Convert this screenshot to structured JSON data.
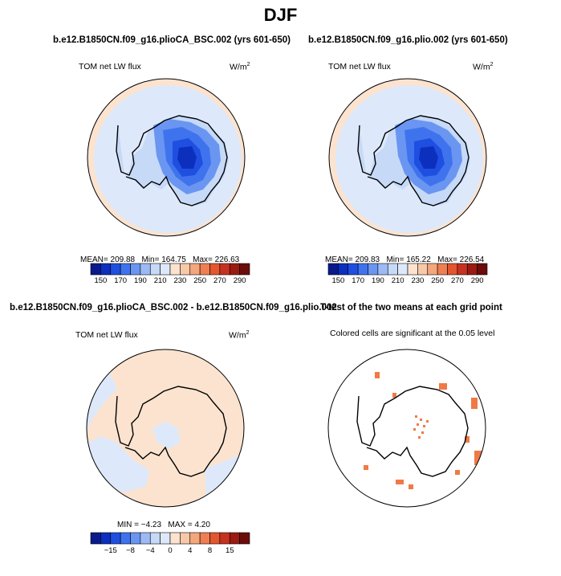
{
  "title": "DJF",
  "panels": [
    {
      "title": "b.e12.B1850CN.f09_g16.plioCA_BSC.002 (yrs 601-650)",
      "variable": "TOM net LW flux",
      "units": "W/m",
      "units_exp": "2",
      "stats": {
        "mean_label": "MEAN=",
        "mean": "209.88",
        "min_label": "Min=",
        "min": "164.75",
        "max_label": "Max=",
        "max": "226.63"
      },
      "colorbar": {
        "colors": [
          "#0a1a8c",
          "#0c2fbd",
          "#1f4fe0",
          "#3f73ee",
          "#6a96f2",
          "#9dbaf5",
          "#c6d9f7",
          "#dde9fb",
          "#fbe3cf",
          "#f7c9a8",
          "#f4a67c",
          "#ef7f52",
          "#e3562f",
          "#c63220",
          "#9b1a12",
          "#6b0c0a"
        ],
        "labels": [
          "150",
          "170",
          "190",
          "210",
          "230",
          "250",
          "270",
          "290"
        ]
      }
    },
    {
      "title": "b.e12.B1850CN.f09_g16.plio.002 (yrs 601-650)",
      "variable": "TOM net LW flux",
      "units": "W/m",
      "units_exp": "2",
      "stats": {
        "mean_label": "MEAN=",
        "mean": "209.83",
        "min_label": "Min=",
        "min": "165.22",
        "max_label": "Max=",
        "max": "226.54"
      },
      "colorbar": {
        "colors": [
          "#0a1a8c",
          "#0c2fbd",
          "#1f4fe0",
          "#3f73ee",
          "#6a96f2",
          "#9dbaf5",
          "#c6d9f7",
          "#dde9fb",
          "#fbe3cf",
          "#f7c9a8",
          "#f4a67c",
          "#ef7f52",
          "#e3562f",
          "#c63220",
          "#9b1a12",
          "#6b0c0a"
        ],
        "labels": [
          "150",
          "170",
          "190",
          "210",
          "230",
          "250",
          "270",
          "290"
        ]
      }
    },
    {
      "title": "b.e12.B1850CN.f09_g16.plioCA_BSC.002 - b.e12.B1850CN.f09_g16.plio.002",
      "variable": "TOM net LW flux",
      "units": "W/m",
      "units_exp": "2",
      "stats": {
        "min_label": "MIN =",
        "min": "−4.23",
        "max_label": "MAX =",
        "max": "4.20"
      },
      "colorbar": {
        "colors": [
          "#0a1a8c",
          "#0c2fbd",
          "#1f4fe0",
          "#3f73ee",
          "#6a96f2",
          "#9dbaf5",
          "#c6d9f7",
          "#dde9fb",
          "#fbe3cf",
          "#f7c9a8",
          "#f4a67c",
          "#ef7f52",
          "#e3562f",
          "#c63220",
          "#9b1a12",
          "#6b0c0a"
        ],
        "labels": [
          "−15",
          "−8",
          "−4",
          "0",
          "4",
          "8",
          "15"
        ]
      }
    },
    {
      "title": "T-test of the two means at each grid point",
      "subtitle": "Colored cells are significant at the 0.05 level"
    }
  ],
  "chart_data": [
    {
      "type": "heatmap",
      "projection": "south polar stereographic",
      "title": "b.e12.B1850CN.f09_g16.plioCA_BSC.002 (yrs 601-650)",
      "variable": "TOM net LW flux",
      "units": "W/m2",
      "mean": 209.88,
      "min": 164.75,
      "max": 226.63,
      "colorbar_levels": [
        150,
        160,
        170,
        180,
        190,
        200,
        210,
        220,
        230,
        240,
        250,
        260,
        270,
        280,
        290
      ]
    },
    {
      "type": "heatmap",
      "projection": "south polar stereographic",
      "title": "b.e12.B1850CN.f09_g16.plio.002 (yrs 601-650)",
      "variable": "TOM net LW flux",
      "units": "W/m2",
      "mean": 209.83,
      "min": 165.22,
      "max": 226.54,
      "colorbar_levels": [
        150,
        160,
        170,
        180,
        190,
        200,
        210,
        220,
        230,
        240,
        250,
        260,
        270,
        280,
        290
      ]
    },
    {
      "type": "heatmap",
      "projection": "south polar stereographic",
      "title": "b.e12.B1850CN.f09_g16.plioCA_BSC.002 - b.e12.B1850CN.f09_g16.plio.002",
      "variable": "TOM net LW flux",
      "units": "W/m2",
      "min": -4.23,
      "max": 4.2,
      "colorbar_levels": [
        -15,
        -8,
        -4,
        0,
        4,
        8,
        15
      ]
    },
    {
      "type": "heatmap",
      "projection": "south polar stereographic",
      "title": "T-test of the two means at each grid point",
      "subtitle": "Colored cells are significant at the 0.05 level",
      "significance_level": 0.05
    }
  ]
}
